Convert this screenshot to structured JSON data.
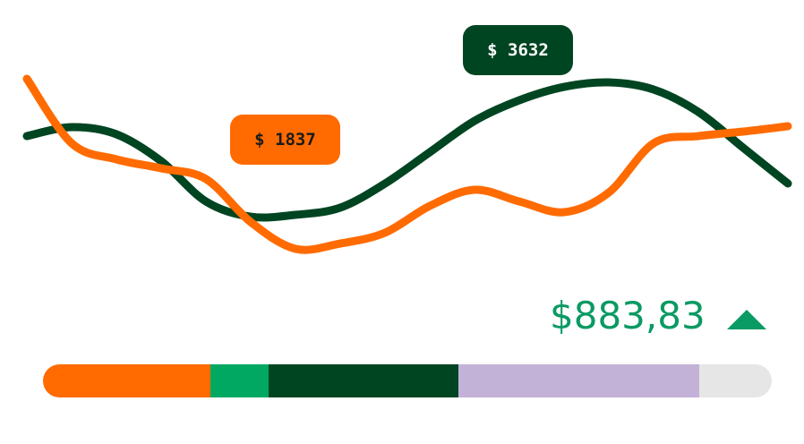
{
  "chart_data": {
    "type": "line",
    "series": [
      {
        "color": "#004521",
        "values": [
          3021,
          3179,
          3053,
          2579,
          1868,
          1600,
          1632,
          1758,
          2184,
          2737,
          3289,
          3653,
          3889,
          3968,
          3842,
          3447,
          2816,
          2184
        ]
      },
      {
        "color": "#ff6b00",
        "values": [
          4032,
          2895,
          2611,
          2453,
          2263,
          1505,
          1032,
          1126,
          1316,
          1789,
          2074,
          1868,
          1679,
          2026,
          2895,
          3021,
          3100,
          3195
        ]
      }
    ],
    "callouts": [
      {
        "label": "$ 1837",
        "color": "#ff6b00",
        "text_color": "#1a1a1a"
      },
      {
        "label": "$ 3632",
        "color": "#004521",
        "text_color": "#ffffff"
      }
    ]
  },
  "total": {
    "label": "$883,83",
    "color": "#0a9a63"
  },
  "progress_bar": {
    "segments": [
      {
        "value": 23,
        "color": "#ff6b00"
      },
      {
        "value": 8,
        "color": "#00a862"
      },
      {
        "value": 26,
        "color": "#004521"
      },
      {
        "value": 33,
        "color": "#c3b2d8"
      },
      {
        "value": 10,
        "color": "#e6e6e6"
      }
    ]
  }
}
